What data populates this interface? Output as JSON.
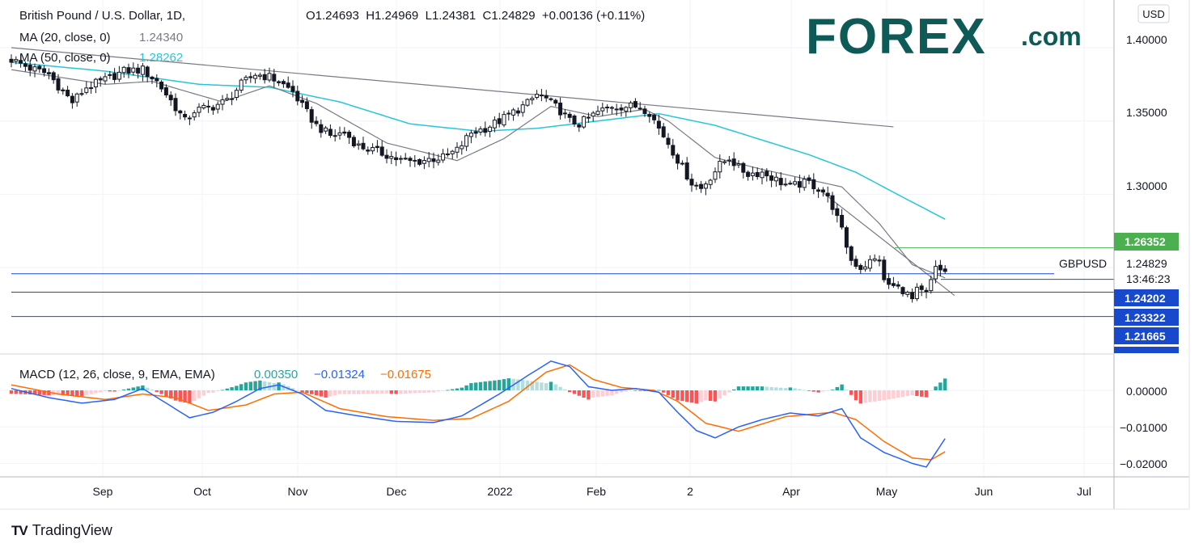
{
  "header": {
    "symbol_title": "British Pound / U.S. Dollar, 1D,",
    "ohlc": "O1.24693  H1.24969  L1.24381  C1.24829  +0.00136 (+0.11%)",
    "ma20_label": "MA (20, close, 0)",
    "ma20_value": "1.24340",
    "ma50_label": "MA (50, close, 0)",
    "ma50_value": "1.28262",
    "currency": "USD"
  },
  "logo": {
    "forex": "FOREX",
    "dotcom": ".com"
  },
  "price_axis": {
    "ticks": [
      "1.40000",
      "1.35000",
      "1.30000"
    ],
    "ticker": "GBPUSD",
    "last_price": "1.24829",
    "countdown": "13:46:23",
    "levels": [
      {
        "label": "1.26352",
        "value": 1.26352,
        "color": "#4caf50"
      },
      {
        "label": "1.24202",
        "value": 1.24202,
        "color": "#1848cc"
      },
      {
        "label": "1.23322",
        "value": 1.23322,
        "color": "#1848cc"
      },
      {
        "label": "1.21665",
        "value": 1.21665,
        "color": "#1848cc"
      }
    ]
  },
  "macd": {
    "label": "MACD (12, 26, close, 9, EMA, EMA)",
    "hist_value": "0.00350",
    "macd_value": "−0.01324",
    "signal_value": "−0.01675",
    "ticks": [
      "0.00000",
      "−0.01000",
      "−0.02000"
    ]
  },
  "time_axis": {
    "labels": [
      "Sep",
      "Oct",
      "Nov",
      "Dec",
      "2022",
      "Feb",
      "2",
      "Apr",
      "May",
      "Jun",
      "Jul"
    ]
  },
  "footer": {
    "brand": "TradingView",
    "brand_logo": "TV"
  },
  "colors": {
    "up": "#26a69a",
    "down": "#ef5350",
    "ma20": "#787b86",
    "ma50": "#26c6da",
    "macd": "#2962ff",
    "signal": "#ff6d00",
    "hline": "#1848cc",
    "resist": "#4caf50"
  },
  "chart_data": {
    "type": "candlestick",
    "title": "British Pound / U.S. Dollar, 1D",
    "price_range": [
      1.205,
      1.41
    ],
    "macd_range": [
      -0.022,
      0.009
    ],
    "months": [
      "Sep",
      "Oct",
      "Nov",
      "Dec",
      "2022",
      "Feb",
      "2",
      "Apr",
      "May",
      "Jun",
      "Jul"
    ],
    "price_path": [
      [
        0,
        1.392
      ],
      [
        4,
        1.386
      ],
      [
        8,
        1.382
      ],
      [
        11,
        1.37
      ],
      [
        13,
        1.363
      ],
      [
        16,
        1.373
      ],
      [
        20,
        1.378
      ],
      [
        24,
        1.384
      ],
      [
        28,
        1.385
      ],
      [
        31,
        1.377
      ],
      [
        34,
        1.364
      ],
      [
        37,
        1.35
      ],
      [
        39,
        1.357
      ],
      [
        43,
        1.36
      ],
      [
        46,
        1.364
      ],
      [
        49,
        1.375
      ],
      [
        52,
        1.382
      ],
      [
        55,
        1.38
      ],
      [
        57,
        1.377
      ],
      [
        60,
        1.37
      ],
      [
        62,
        1.36
      ],
      [
        65,
        1.347
      ],
      [
        68,
        1.34
      ],
      [
        71,
        1.342
      ],
      [
        74,
        1.333
      ],
      [
        77,
        1.33
      ],
      [
        80,
        1.327
      ],
      [
        83,
        1.323
      ],
      [
        86,
        1.322
      ],
      [
        89,
        1.324
      ],
      [
        92,
        1.325
      ],
      [
        95,
        1.33
      ],
      [
        98,
        1.342
      ],
      [
        101,
        1.345
      ],
      [
        104,
        1.35
      ],
      [
        108,
        1.358
      ],
      [
        110,
        1.362
      ],
      [
        112,
        1.368
      ],
      [
        114,
        1.365
      ],
      [
        117,
        1.357
      ],
      [
        119,
        1.35
      ],
      [
        121,
        1.348
      ],
      [
        123,
        1.352
      ],
      [
        125,
        1.356
      ],
      [
        128,
        1.36
      ],
      [
        131,
        1.36
      ],
      [
        134,
        1.36
      ],
      [
        136,
        1.356
      ],
      [
        138,
        1.345
      ],
      [
        140,
        1.335
      ],
      [
        143,
        1.318
      ],
      [
        145,
        1.308
      ],
      [
        147,
        1.304
      ],
      [
        149,
        1.312
      ],
      [
        151,
        1.32
      ],
      [
        153,
        1.325
      ],
      [
        155,
        1.318
      ],
      [
        157,
        1.314
      ],
      [
        160,
        1.315
      ],
      [
        163,
        1.31
      ],
      [
        166,
        1.305
      ],
      [
        168,
        1.307
      ],
      [
        170,
        1.308
      ],
      [
        173,
        1.302
      ],
      [
        175,
        1.292
      ],
      [
        177,
        1.275
      ],
      [
        179,
        1.255
      ],
      [
        181,
        1.25
      ],
      [
        183,
        1.254
      ],
      [
        185,
        1.256
      ],
      [
        186,
        1.24
      ],
      [
        188,
        1.237
      ],
      [
        190,
        1.235
      ],
      [
        192,
        1.228
      ],
      [
        193,
        1.234
      ],
      [
        195,
        1.232
      ],
      [
        197,
        1.249
      ],
      [
        198,
        1.248
      ],
      [
        199,
        1.248
      ]
    ],
    "ma20_path": [
      [
        0,
        1.385
      ],
      [
        20,
        1.375
      ],
      [
        30,
        1.377
      ],
      [
        45,
        1.363
      ],
      [
        55,
        1.374
      ],
      [
        65,
        1.362
      ],
      [
        80,
        1.335
      ],
      [
        95,
        1.323
      ],
      [
        105,
        1.338
      ],
      [
        115,
        1.36
      ],
      [
        125,
        1.353
      ],
      [
        135,
        1.358
      ],
      [
        140,
        1.35
      ],
      [
        150,
        1.325
      ],
      [
        160,
        1.317
      ],
      [
        170,
        1.31
      ],
      [
        177,
        1.305
      ],
      [
        185,
        1.28
      ],
      [
        192,
        1.252
      ],
      [
        199,
        1.243
      ]
    ],
    "ma50_path": [
      [
        0,
        1.39
      ],
      [
        20,
        1.384
      ],
      [
        40,
        1.375
      ],
      [
        55,
        1.373
      ],
      [
        70,
        1.363
      ],
      [
        85,
        1.348
      ],
      [
        100,
        1.343
      ],
      [
        112,
        1.345
      ],
      [
        125,
        1.35
      ],
      [
        138,
        1.355
      ],
      [
        150,
        1.347
      ],
      [
        160,
        1.337
      ],
      [
        170,
        1.327
      ],
      [
        180,
        1.315
      ],
      [
        190,
        1.298
      ],
      [
        199,
        1.283
      ]
    ],
    "trendlines": [
      {
        "from": [
          0,
          1.4
        ],
        "to": [
          188,
          1.346
        ]
      },
      {
        "from": [
          173,
          1.301
        ],
        "to": [
          201,
          1.231
        ]
      }
    ],
    "macd_path": [
      [
        0,
        0.0005
      ],
      [
        8,
        -0.002
      ],
      [
        15,
        -0.0035
      ],
      [
        22,
        -0.0025
      ],
      [
        28,
        0.0005
      ],
      [
        33,
        -0.0035
      ],
      [
        38,
        -0.0075
      ],
      [
        43,
        -0.006
      ],
      [
        48,
        -0.003
      ],
      [
        53,
        0.0005
      ],
      [
        57,
        0.0015
      ],
      [
        62,
        -0.001
      ],
      [
        67,
        -0.0055
      ],
      [
        74,
        -0.007
      ],
      [
        82,
        -0.0085
      ],
      [
        90,
        -0.0088
      ],
      [
        96,
        -0.007
      ],
      [
        104,
        -0.001
      ],
      [
        110,
        0.004
      ],
      [
        115,
        0.008
      ],
      [
        119,
        0.0065
      ],
      [
        123,
        0.001
      ],
      [
        128,
        0.0
      ],
      [
        133,
        0.0005
      ],
      [
        138,
        -0.0005
      ],
      [
        142,
        -0.006
      ],
      [
        146,
        -0.011
      ],
      [
        150,
        -0.013
      ],
      [
        155,
        -0.01
      ],
      [
        160,
        -0.008
      ],
      [
        166,
        -0.0062
      ],
      [
        172,
        -0.007
      ],
      [
        177,
        -0.005
      ],
      [
        181,
        -0.013
      ],
      [
        186,
        -0.017
      ],
      [
        192,
        -0.02
      ],
      [
        195,
        -0.021
      ],
      [
        199,
        -0.0132
      ]
    ],
    "signal_path": [
      [
        0,
        0.0015
      ],
      [
        10,
        -0.001
      ],
      [
        20,
        -0.0025
      ],
      [
        28,
        -0.001
      ],
      [
        35,
        -0.002
      ],
      [
        42,
        -0.0055
      ],
      [
        50,
        -0.004
      ],
      [
        56,
        -0.001
      ],
      [
        62,
        -0.0005
      ],
      [
        70,
        -0.005
      ],
      [
        80,
        -0.0072
      ],
      [
        90,
        -0.0082
      ],
      [
        98,
        -0.0077
      ],
      [
        106,
        -0.003
      ],
      [
        114,
        0.005
      ],
      [
        119,
        0.007
      ],
      [
        124,
        0.003
      ],
      [
        130,
        0.0008
      ],
      [
        137,
        0.0
      ],
      [
        142,
        -0.003
      ],
      [
        148,
        -0.009
      ],
      [
        155,
        -0.0112
      ],
      [
        165,
        -0.0072
      ],
      [
        175,
        -0.006
      ],
      [
        180,
        -0.008
      ],
      [
        186,
        -0.014
      ],
      [
        192,
        -0.0185
      ],
      [
        196,
        -0.019
      ],
      [
        199,
        -0.0168
      ]
    ],
    "grid": true,
    "legend_position": "top-left"
  }
}
